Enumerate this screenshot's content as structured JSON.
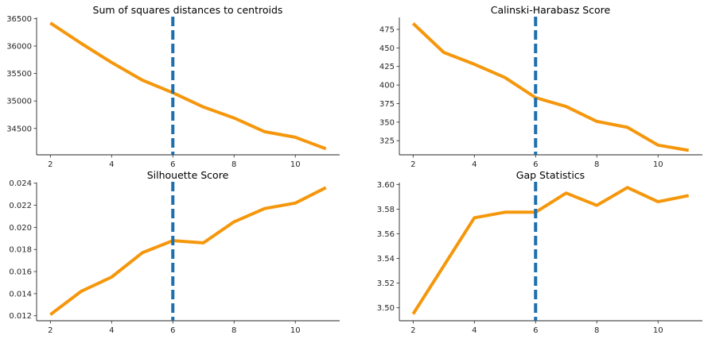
{
  "colors": {
    "line": "#f5970c",
    "vline": "#1f6fad",
    "axis": "#262626"
  },
  "chart_data": [
    {
      "type": "line",
      "title": "Sum of squares distances to centroids",
      "x": [
        2,
        3,
        4,
        5,
        6,
        7,
        8,
        9,
        10,
        11
      ],
      "values": [
        36420,
        36050,
        35700,
        35380,
        35150,
        34890,
        34690,
        34440,
        34340,
        34130
      ],
      "xlim": [
        1.55,
        11.45
      ],
      "ylim": [
        34020,
        36520
      ],
      "xticks": [
        2,
        4,
        6,
        8,
        10
      ],
      "yticks": [
        34500,
        35000,
        35500,
        36000,
        36500
      ],
      "vline_x": 6,
      "grid": false
    },
    {
      "type": "line",
      "title": "Calinski-Harabasz Score",
      "x": [
        2,
        3,
        4,
        5,
        6,
        7,
        8,
        9,
        10,
        11
      ],
      "values": [
        483,
        444,
        428,
        410,
        383,
        371,
        351,
        343,
        319,
        312
      ],
      "xlim": [
        1.55,
        11.45
      ],
      "ylim": [
        306,
        491
      ],
      "xticks": [
        2,
        4,
        6,
        8,
        10
      ],
      "yticks": [
        325,
        350,
        375,
        400,
        425,
        450,
        475
      ],
      "vline_x": 6,
      "grid": false
    },
    {
      "type": "line",
      "title": "Silhouette Score",
      "x": [
        2,
        3,
        4,
        5,
        6,
        7,
        8,
        9,
        10,
        11
      ],
      "values": [
        0.0121,
        0.0142,
        0.0155,
        0.0177,
        0.0188,
        0.0186,
        0.0205,
        0.0217,
        0.0222,
        0.0236
      ],
      "xlim": [
        1.55,
        11.45
      ],
      "ylim": [
        0.01155,
        0.02405
      ],
      "xticks": [
        2,
        4,
        6,
        8,
        10
      ],
      "yticks": [
        0.012,
        0.014,
        0.016,
        0.018,
        0.02,
        0.022,
        0.024
      ],
      "ytick_decimals": 3,
      "vline_x": 6,
      "grid": false
    },
    {
      "type": "line",
      "title": "Gap Statistics",
      "x": [
        2,
        3,
        4,
        5,
        6,
        7,
        8,
        9,
        10,
        11
      ],
      "values": [
        3.495,
        3.534,
        3.573,
        3.5775,
        3.5775,
        3.593,
        3.583,
        3.5975,
        3.586,
        3.591
      ],
      "xlim": [
        1.55,
        11.45
      ],
      "ylim": [
        3.4895,
        3.6015
      ],
      "xticks": [
        2,
        4,
        6,
        8,
        10
      ],
      "yticks": [
        3.5,
        3.52,
        3.54,
        3.56,
        3.58,
        3.6
      ],
      "ytick_decimals": 2,
      "vline_x": 6,
      "grid": false
    }
  ]
}
